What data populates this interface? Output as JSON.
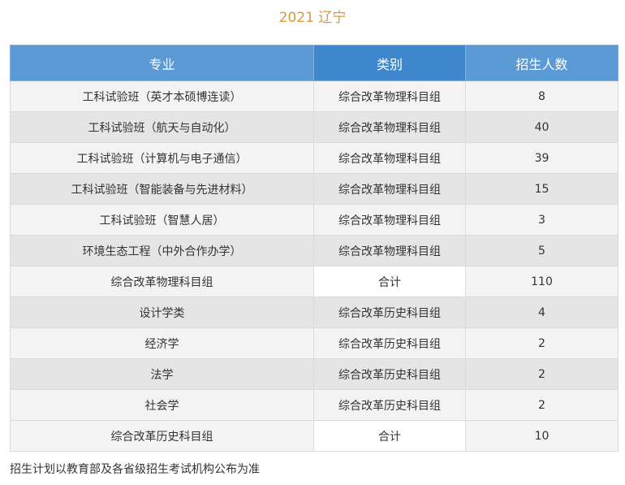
{
  "title": "2021 辽宁",
  "headers": [
    "专业",
    "类别",
    "招生人数"
  ],
  "rows": [
    {
      "major": "工科试验班（英才本硕博连读）",
      "category": "综合改革物理科目组",
      "count": "8",
      "type": "odd"
    },
    {
      "major": "工科试验班（航天与自动化）",
      "category": "综合改革物理科目组",
      "count": "40",
      "type": "even"
    },
    {
      "major": "工科试验班（计算机与电子通信）",
      "category": "综合改革物理科目组",
      "count": "39",
      "type": "odd"
    },
    {
      "major": "工科试验班（智能装备与先进材料）",
      "category": "综合改革物理科目组",
      "count": "15",
      "type": "even"
    },
    {
      "major": "工科试验班（智慧人居）",
      "category": "综合改革物理科目组",
      "count": "3",
      "type": "odd"
    },
    {
      "major": "环境生态工程（中外合作办学）",
      "category": "综合改革物理科目组",
      "count": "5",
      "type": "even"
    },
    {
      "major": "综合改革物理科目组",
      "category": "合计",
      "count": "110",
      "type": "total"
    },
    {
      "major": "设计学类",
      "category": "综合改革历史科目组",
      "count": "4",
      "type": "even"
    },
    {
      "major": "经济学",
      "category": "综合改革历史科目组",
      "count": "2",
      "type": "odd"
    },
    {
      "major": "法学",
      "category": "综合改革历史科目组",
      "count": "2",
      "type": "even"
    },
    {
      "major": "社会学",
      "category": "综合改革历史科目组",
      "count": "2",
      "type": "odd"
    },
    {
      "major": "综合改革历史科目组",
      "category": "合计",
      "count": "10",
      "type": "total"
    }
  ],
  "footnote": "招生计划以教育部及各省级招生考试机构公布为准",
  "colors": {
    "title": "#d79a3a",
    "header": "#5b9ad5",
    "header_mid": "#3f87cd",
    "row_light": "#f3f3f3",
    "row_dark": "#e5e5e5"
  }
}
